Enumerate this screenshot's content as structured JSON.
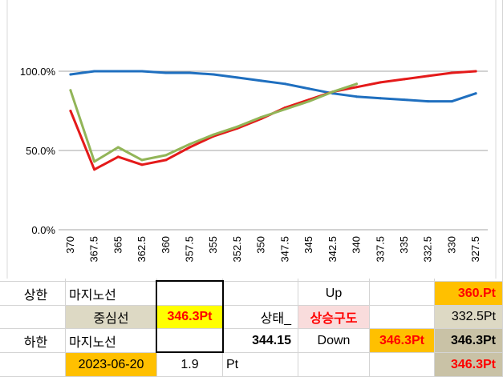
{
  "chart_data": {
    "type": "line",
    "categories": [
      "370",
      "367.5",
      "365",
      "362.5",
      "360",
      "357.5",
      "355",
      "352.5",
      "350",
      "347.5",
      "345",
      "342.5",
      "340",
      "337.5",
      "335",
      "332.5",
      "330",
      "327.5"
    ],
    "y_ticks": [
      "0.0%",
      "50.0%",
      "100.0%"
    ],
    "ylim": [
      0,
      1.5
    ],
    "grid": true,
    "series": [
      {
        "color": "#1f6fbf",
        "values": [
          0.98,
          1.0,
          1.0,
          1.0,
          0.99,
          0.99,
          0.98,
          0.96,
          0.94,
          0.92,
          0.89,
          0.86,
          0.84,
          0.83,
          0.82,
          0.81,
          0.81,
          0.86
        ]
      },
      {
        "color": "#e41a1a",
        "values": [
          0.75,
          0.38,
          0.46,
          0.41,
          0.44,
          0.52,
          0.59,
          0.64,
          0.7,
          0.77,
          0.82,
          0.87,
          0.9,
          0.93,
          0.95,
          0.97,
          0.99,
          1.0
        ]
      },
      {
        "color": "#92b558",
        "values": [
          0.88,
          0.43,
          0.52,
          0.44,
          0.47,
          0.54,
          0.6,
          0.65,
          0.71,
          0.76,
          0.81,
          0.87,
          0.92,
          null,
          null,
          null,
          null,
          null
        ]
      }
    ]
  },
  "table": {
    "r1": {
      "a": "상한",
      "b": "마지노선",
      "f": "Up",
      "h": "360.Pt"
    },
    "r2": {
      "b": "중심선",
      "c": "346.3Pt",
      "e": "상태_",
      "f": "상승구도",
      "h": "332.5Pt"
    },
    "r3": {
      "a": "하한",
      "b": "마지노선",
      "d": "344.15",
      "f": "Down",
      "g": "346.3Pt",
      "h": "346.3Pt"
    },
    "r4": {
      "b": "2023-06-20",
      "c": "1.9",
      "d": "Pt",
      "h": "346.3Pt"
    }
  }
}
